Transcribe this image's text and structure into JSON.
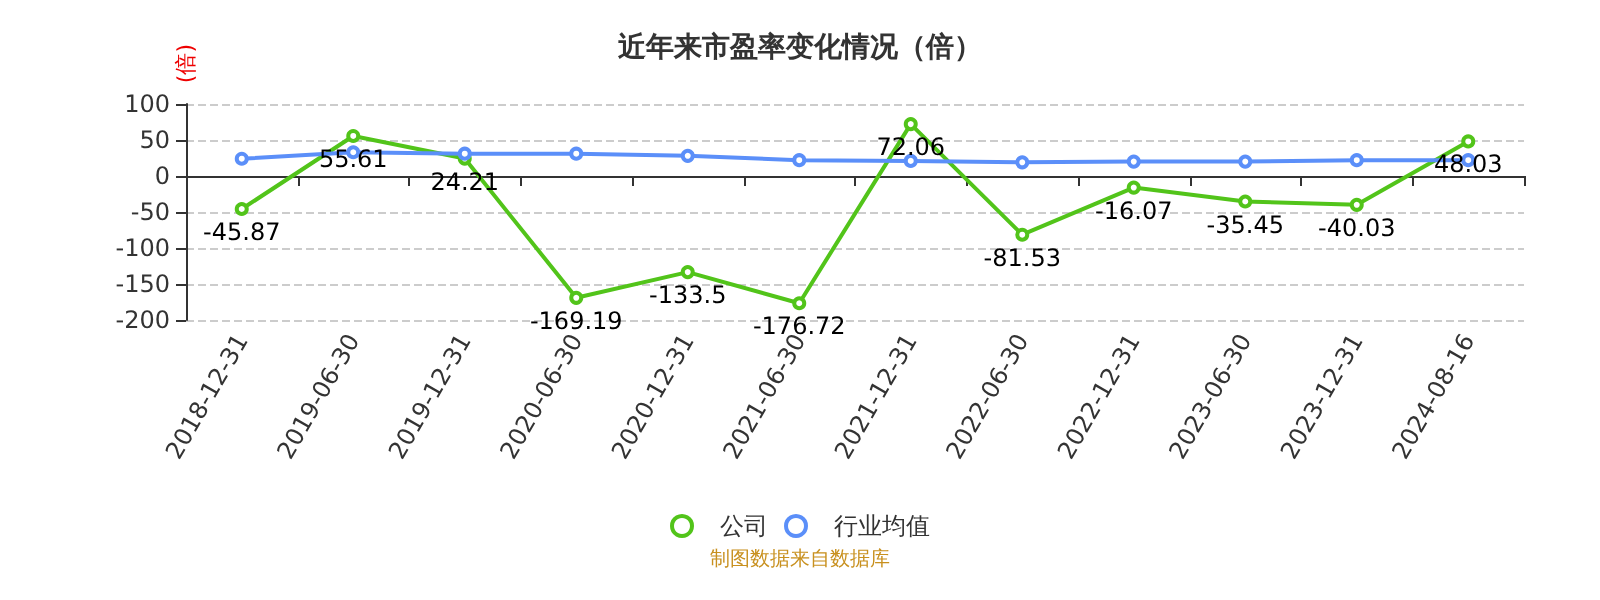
{
  "chart_data": {
    "type": "line",
    "title": "近年来市盈率变化情况（倍）",
    "ylabel": "(倍)",
    "categories": [
      "2018-12-31",
      "2019-06-30",
      "2019-12-31",
      "2020-06-30",
      "2020-12-31",
      "2021-06-30",
      "2021-12-31",
      "2022-06-30",
      "2022-12-31",
      "2023-06-30",
      "2023-12-31",
      "2024-08-16"
    ],
    "series": [
      {
        "name": "公司",
        "color": "#52c41a",
        "values": [
          -45.87,
          55.61,
          24.21,
          -169.19,
          -133.5,
          -176.72,
          72.06,
          -81.53,
          -16.07,
          -35.45,
          -40.03,
          48.03
        ],
        "data_labels": true
      },
      {
        "name": "行业均值",
        "color": "#5b8ff9",
        "values": [
          24,
          33,
          31,
          31,
          28,
          22,
          21,
          19,
          20,
          20,
          22,
          22
        ]
      }
    ],
    "ylim": [
      -200,
      100
    ],
    "yticks": [
      -200,
      -150,
      -100,
      -50,
      0,
      50,
      100
    ],
    "grid": "y",
    "legend": "bottom",
    "marker": "circle",
    "line_style": "solid",
    "annotations": [
      "制图数据来自数据库"
    ]
  }
}
